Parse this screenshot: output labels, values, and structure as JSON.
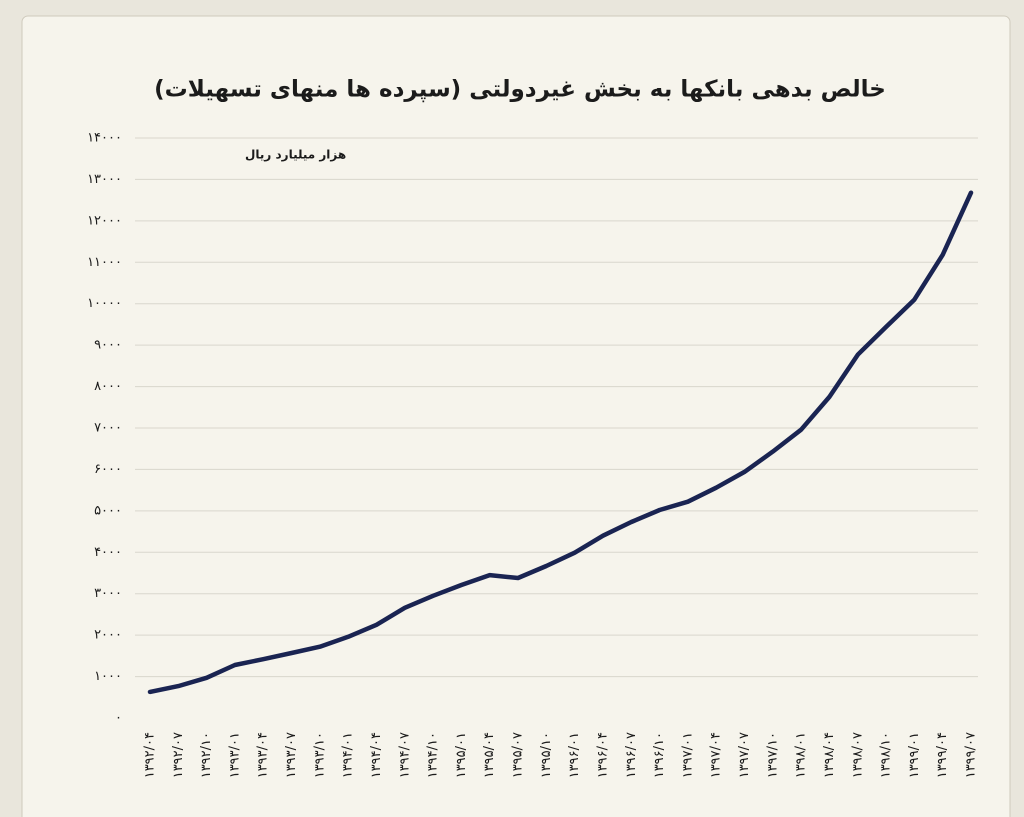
{
  "chart_data": {
    "type": "line",
    "title": "خالص بدهی بانکها به بخش غیردولتی (سپرده ها منهای تسهیلات)",
    "y_axis_label": "هزار میلیارد ریال",
    "categories": [
      "۱۳۹۲/۰۴",
      "۱۳۹۲/۰۷",
      "۱۳۹۲/۱۰",
      "۱۳۹۳/۰۱",
      "۱۳۹۳/۰۴",
      "۱۳۹۳/۰۷",
      "۱۳۹۳/۱۰",
      "۱۳۹۴/۰۱",
      "۱۳۹۴/۰۴",
      "۱۳۹۴/۰۷",
      "۱۳۹۴/۱۰",
      "۱۳۹۵/۰۱",
      "۱۳۹۵/۰۴",
      "۱۳۹۵/۰۷",
      "۱۳۹۵/۱۰",
      "۱۳۹۶/۰۱",
      "۱۳۹۶/۰۴",
      "۱۳۹۶/۰۷",
      "۱۳۹۶/۱۰",
      "۱۳۹۷/۰۱",
      "۱۳۹۷/۰۴",
      "۱۳۹۷/۰۷",
      "۱۳۹۷/۱۰",
      "۱۳۹۸/۰۱",
      "۱۳۹۸/۰۴",
      "۱۳۹۸/۰۷",
      "۱۳۹۸/۱۰",
      "۱۳۹۹/۰۱",
      "۱۳۹۹/۰۴",
      "۱۳۹۹/۰۷"
    ],
    "series": [
      {
        "color": "#1a2452",
        "values": [
          630,
          770,
          970,
          1280,
          1420,
          1570,
          1720,
          1960,
          2250,
          2660,
          2950,
          3210,
          3450,
          3380,
          3670,
          3990,
          4400,
          4730,
          5020,
          5220,
          5560,
          5940,
          6430,
          6960,
          7750,
          8770,
          9440,
          10100,
          11180,
          12680
        ]
      }
    ],
    "ylim": [
      0,
      14000
    ],
    "yticks": [
      {
        "value": 0,
        "label": "۰"
      },
      {
        "value": 1000,
        "label": "۱۰۰۰"
      },
      {
        "value": 2000,
        "label": "۲۰۰۰"
      },
      {
        "value": 3000,
        "label": "۳۰۰۰"
      },
      {
        "value": 4000,
        "label": "۴۰۰۰"
      },
      {
        "value": 5000,
        "label": "۵۰۰۰"
      },
      {
        "value": 6000,
        "label": "۶۰۰۰"
      },
      {
        "value": 7000,
        "label": "۷۰۰۰"
      },
      {
        "value": 8000,
        "label": "۸۰۰۰"
      },
      {
        "value": 9000,
        "label": "۹۰۰۰"
      },
      {
        "value": 10000,
        "label": "۱۰۰۰۰"
      },
      {
        "value": 11000,
        "label": "۱۱۰۰۰"
      },
      {
        "value": 12000,
        "label": "۱۲۰۰۰"
      },
      {
        "value": 13000,
        "label": "۱۳۰۰۰"
      },
      {
        "value": 14000,
        "label": "۱۴۰۰۰"
      }
    ],
    "grid": true
  }
}
